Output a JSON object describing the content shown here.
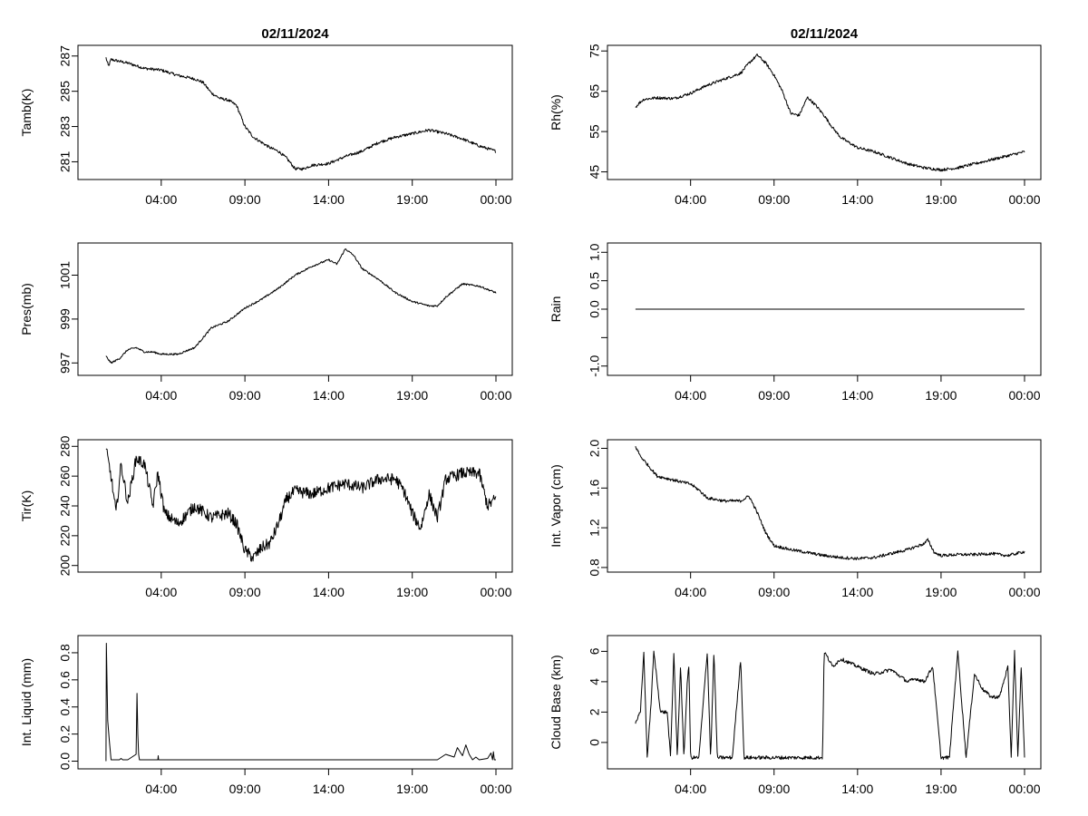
{
  "chart_data": [
    {
      "type": "line",
      "title": "02/11/2024",
      "xlabel": "",
      "ylabel": "Tamb(K)",
      "xlim": [
        0,
        24
      ],
      "ylim": [
        280.2,
        287.4
      ],
      "xticks": [
        4,
        9,
        14,
        19,
        24
      ],
      "xtick_labels": [
        "04:00",
        "09:00",
        "14:00",
        "19:00",
        "00:00"
      ],
      "yticks": [
        281,
        283,
        285,
        287
      ],
      "ytick_labels": [
        "281",
        "283",
        "285",
        "287"
      ],
      "noise": 0.08,
      "x": [
        0.7,
        0.85,
        1.0,
        1.5,
        2.0,
        3.0,
        4.0,
        5.0,
        6.0,
        6.5,
        7.0,
        7.5,
        8.0,
        8.5,
        9.0,
        9.5,
        10.0,
        10.5,
        11.0,
        11.5,
        12.0,
        12.5,
        13.0,
        14.0,
        15.0,
        16.0,
        17.0,
        18.0,
        19.0,
        20.0,
        21.0,
        22.0,
        23.0,
        24.0
      ],
      "y": [
        286.9,
        286.4,
        286.8,
        286.7,
        286.6,
        286.3,
        286.2,
        285.9,
        285.7,
        285.5,
        284.9,
        284.6,
        284.5,
        284.2,
        283.0,
        282.4,
        282.1,
        281.8,
        281.6,
        281.2,
        280.6,
        280.6,
        280.8,
        280.9,
        281.3,
        281.6,
        282.1,
        282.4,
        282.6,
        282.8,
        282.6,
        282.3,
        281.9,
        281.6
      ]
    },
    {
      "type": "line",
      "title": "02/11/2024",
      "xlabel": "",
      "ylabel": "Rh(%)",
      "xlim": [
        0,
        24
      ],
      "ylim": [
        44,
        75.5
      ],
      "xticks": [
        4,
        9,
        14,
        19,
        24
      ],
      "xtick_labels": [
        "04:00",
        "09:00",
        "14:00",
        "19:00",
        "00:00"
      ],
      "yticks": [
        45,
        55,
        65,
        75
      ],
      "ytick_labels": [
        "45",
        "55",
        "65",
        "75"
      ],
      "noise": 0.35,
      "x": [
        0.7,
        0.9,
        1.2,
        2.0,
        3.0,
        4.0,
        5.0,
        6.0,
        7.0,
        7.5,
        8.0,
        8.5,
        9.0,
        9.5,
        10.0,
        10.5,
        11.0,
        11.5,
        12.0,
        12.5,
        13.0,
        14.0,
        15.0,
        16.0,
        17.0,
        18.0,
        19.0,
        20.0,
        21.0,
        22.0,
        23.0,
        24.0
      ],
      "y": [
        61.0,
        62.0,
        63.0,
        63.4,
        63.2,
        64.5,
        66.5,
        68.0,
        69.5,
        72.0,
        74.0,
        72.0,
        69.0,
        65.0,
        59.5,
        59.0,
        63.5,
        61.5,
        59.0,
        56.0,
        53.5,
        51.0,
        50.0,
        48.5,
        47.0,
        46.0,
        45.5,
        46.0,
        47.0,
        48.0,
        49.0,
        50.0
      ]
    },
    {
      "type": "line",
      "title": "",
      "xlabel": "",
      "ylabel": "Pres(mb)",
      "xlim": [
        0,
        24
      ],
      "ylim": [
        996.6,
        1002.3
      ],
      "xticks": [
        4,
        9,
        14,
        19,
        24
      ],
      "xtick_labels": [
        "04:00",
        "09:00",
        "14:00",
        "19:00",
        "00:00"
      ],
      "yticks": [
        997,
        999,
        1001
      ],
      "ytick_labels": [
        "997",
        "999",
        "1001"
      ],
      "noise": 0.04,
      "x": [
        0.7,
        1.0,
        1.5,
        2.0,
        2.5,
        3.0,
        3.5,
        4.0,
        5.0,
        6.0,
        7.0,
        8.0,
        9.0,
        10.0,
        11.0,
        12.0,
        13.0,
        14.0,
        14.5,
        15.0,
        15.5,
        16.0,
        17.0,
        18.0,
        19.0,
        20.0,
        20.5,
        21.0,
        22.0,
        23.0,
        24.0
      ],
      "y": [
        997.3,
        997.0,
        997.2,
        997.6,
        997.7,
        997.5,
        997.5,
        997.4,
        997.4,
        997.7,
        998.6,
        998.9,
        999.5,
        999.9,
        1000.4,
        1001.0,
        1001.4,
        1001.7,
        1001.5,
        1002.2,
        1001.9,
        1001.3,
        1000.8,
        1000.2,
        999.8,
        999.6,
        999.6,
        1000.0,
        1000.6,
        1000.5,
        1000.2
      ]
    },
    {
      "type": "line",
      "title": "",
      "xlabel": "",
      "ylabel": "Rain",
      "xlim": [
        0,
        24
      ],
      "ylim": [
        -1.1,
        1.1
      ],
      "xticks": [
        4,
        9,
        14,
        19,
        24
      ],
      "xtick_labels": [
        "04:00",
        "09:00",
        "14:00",
        "19:00",
        "00:00"
      ],
      "yticks": [
        -1.0,
        -0.5,
        0.0,
        0.5,
        1.0
      ],
      "ytick_labels": [
        "-1.0",
        "",
        "0.0",
        "0.5",
        "1.0"
      ],
      "noise": 0,
      "x": [
        0.7,
        24.0
      ],
      "y": [
        0.0,
        0.0
      ]
    },
    {
      "type": "line",
      "title": "",
      "xlabel": "",
      "ylabel": "Tir(K)",
      "xlim": [
        0,
        24
      ],
      "ylim": [
        198,
        282
      ],
      "xticks": [
        4,
        9,
        14,
        19,
        24
      ],
      "xtick_labels": [
        "04:00",
        "09:00",
        "14:00",
        "19:00",
        "00:00"
      ],
      "yticks": [
        200,
        220,
        240,
        260,
        280
      ],
      "ytick_labels": [
        "200",
        "220",
        "240",
        "260",
        "280"
      ],
      "noise": 4,
      "x": [
        0.7,
        1.0,
        1.3,
        1.6,
        2.0,
        2.5,
        3.0,
        3.5,
        3.8,
        4.2,
        5.0,
        6.0,
        7.0,
        8.0,
        8.5,
        9.0,
        9.5,
        10.0,
        10.5,
        11.0,
        11.5,
        12.0,
        13.0,
        14.0,
        15.0,
        16.0,
        17.0,
        18.0,
        18.5,
        19.0,
        19.5,
        20.0,
        20.5,
        21.0,
        22.0,
        23.0,
        23.5,
        24.0
      ],
      "y": [
        278.0,
        260.0,
        235.0,
        268.0,
        242.0,
        272.0,
        268.0,
        240.0,
        262.0,
        235.0,
        228.0,
        240.0,
        232.0,
        235.0,
        228.0,
        210.0,
        205.0,
        212.0,
        215.0,
        228.0,
        245.0,
        250.0,
        248.0,
        252.0,
        255.0,
        252.0,
        258.0,
        258.0,
        250.0,
        235.0,
        225.0,
        248.0,
        232.0,
        258.0,
        262.0,
        262.0,
        240.0,
        245.0
      ]
    },
    {
      "type": "line",
      "title": "",
      "xlabel": "",
      "ylabel": "Int. Vapor (cm)",
      "xlim": [
        0,
        24
      ],
      "ylim": [
        0.79,
        2.05
      ],
      "xticks": [
        4,
        9,
        14,
        19,
        24
      ],
      "xtick_labels": [
        "04:00",
        "09:00",
        "14:00",
        "19:00",
        "00:00"
      ],
      "yticks": [
        0.8,
        1.2,
        1.6,
        2.0
      ],
      "ytick_labels": [
        "0.8",
        "1.2",
        "1.6",
        "2.0"
      ],
      "noise": 0.015,
      "x": [
        0.7,
        1.0,
        1.5,
        2.0,
        3.0,
        4.0,
        4.5,
        5.0,
        6.0,
        7.0,
        7.5,
        8.0,
        8.5,
        9.0,
        10.0,
        11.0,
        12.0,
        13.0,
        14.0,
        15.0,
        16.0,
        17.0,
        18.0,
        18.2,
        18.6,
        19.0,
        20.0,
        21.0,
        22.0,
        23.0,
        24.0
      ],
      "y": [
        2.02,
        1.92,
        1.82,
        1.72,
        1.68,
        1.64,
        1.58,
        1.5,
        1.47,
        1.47,
        1.52,
        1.35,
        1.15,
        1.02,
        0.98,
        0.95,
        0.92,
        0.9,
        0.89,
        0.9,
        0.94,
        0.98,
        1.04,
        1.08,
        0.95,
        0.92,
        0.93,
        0.93,
        0.94,
        0.92,
        0.96
      ]
    },
    {
      "type": "line",
      "title": "",
      "xlabel": "",
      "ylabel": "Int. Liquid (mm)",
      "xlim": [
        0,
        24
      ],
      "ylim": [
        -0.03,
        0.9
      ],
      "xticks": [
        4,
        9,
        14,
        19,
        24
      ],
      "xtick_labels": [
        "04:00",
        "09:00",
        "14:00",
        "19:00",
        "00:00"
      ],
      "yticks": [
        0.0,
        0.2,
        0.4,
        0.6,
        0.8
      ],
      "ytick_labels": [
        "0.0",
        "0.2",
        "0.4",
        "0.6",
        "0.8"
      ],
      "noise": 0,
      "x": [
        0.7,
        0.72,
        0.8,
        0.9,
        1.0,
        1.5,
        1.6,
        1.7,
        2.0,
        2.5,
        2.55,
        2.6,
        2.65,
        2.7,
        3.0,
        3.8,
        3.82,
        3.84,
        4.0,
        20.5,
        21.0,
        21.5,
        21.7,
        22.0,
        22.2,
        22.4,
        22.6,
        22.8,
        23.0,
        23.5,
        23.7,
        23.8,
        23.85,
        23.9,
        24.0
      ],
      "y": [
        0.0,
        0.87,
        0.3,
        0.15,
        0.01,
        0.01,
        0.02,
        0.01,
        0.01,
        0.05,
        0.5,
        0.2,
        0.05,
        0.01,
        0.01,
        0.01,
        0.04,
        0.01,
        0.01,
        0.01,
        0.05,
        0.03,
        0.1,
        0.04,
        0.12,
        0.05,
        0.01,
        0.03,
        0.01,
        0.02,
        0.06,
        0.01,
        0.07,
        0.01,
        0.01
      ]
    },
    {
      "type": "line",
      "title": "",
      "xlabel": "",
      "ylabel": "Cloud Base (km)",
      "xlim": [
        0,
        24
      ],
      "ylim": [
        -1.5,
        6.8
      ],
      "xticks": [
        4,
        9,
        14,
        19,
        24
      ],
      "xtick_labels": [
        "04:00",
        "09:00",
        "14:00",
        "19:00",
        "00:00"
      ],
      "yticks": [
        0,
        2,
        4,
        6
      ],
      "ytick_labels": [
        "0",
        "2",
        "4",
        "6"
      ],
      "noise": 0.12,
      "x": [
        0.7,
        1.0,
        1.2,
        1.4,
        1.6,
        1.8,
        2.0,
        2.2,
        2.6,
        2.8,
        3.0,
        3.2,
        3.4,
        3.6,
        3.8,
        3.9,
        4.0,
        4.5,
        5.0,
        5.2,
        5.4,
        5.6,
        6.0,
        6.5,
        7.0,
        7.2,
        7.4,
        7.6,
        8.0,
        9.0,
        10.0,
        11.0,
        11.9,
        12.0,
        12.5,
        13.0,
        14.0,
        15.0,
        16.0,
        17.0,
        17.5,
        18.0,
        18.5,
        19.0,
        19.5,
        20.0,
        20.5,
        21.0,
        21.5,
        22.0,
        22.5,
        23.0,
        23.2,
        23.4,
        23.6,
        23.8,
        24.0
      ],
      "y": [
        1.3,
        2.0,
        6.0,
        -1.0,
        2.0,
        6.0,
        4.0,
        2.0,
        2.0,
        -1.0,
        6.0,
        -1.0,
        5.0,
        -1.0,
        4.0,
        5.0,
        -1.0,
        -1.0,
        6.0,
        -1.0,
        6.0,
        -1.0,
        -1.0,
        -1.0,
        5.5,
        -1.0,
        -1.0,
        -1.0,
        -1.0,
        -1.0,
        -1.0,
        -1.0,
        -1.0,
        6.0,
        5.0,
        5.5,
        5.0,
        4.5,
        4.8,
        4.0,
        4.2,
        4.0,
        5.0,
        -1.0,
        -1.0,
        6.0,
        -1.0,
        4.5,
        3.5,
        3.0,
        3.0,
        5.0,
        -1.0,
        6.0,
        -1.0,
        5.0,
        -1.0
      ]
    }
  ]
}
